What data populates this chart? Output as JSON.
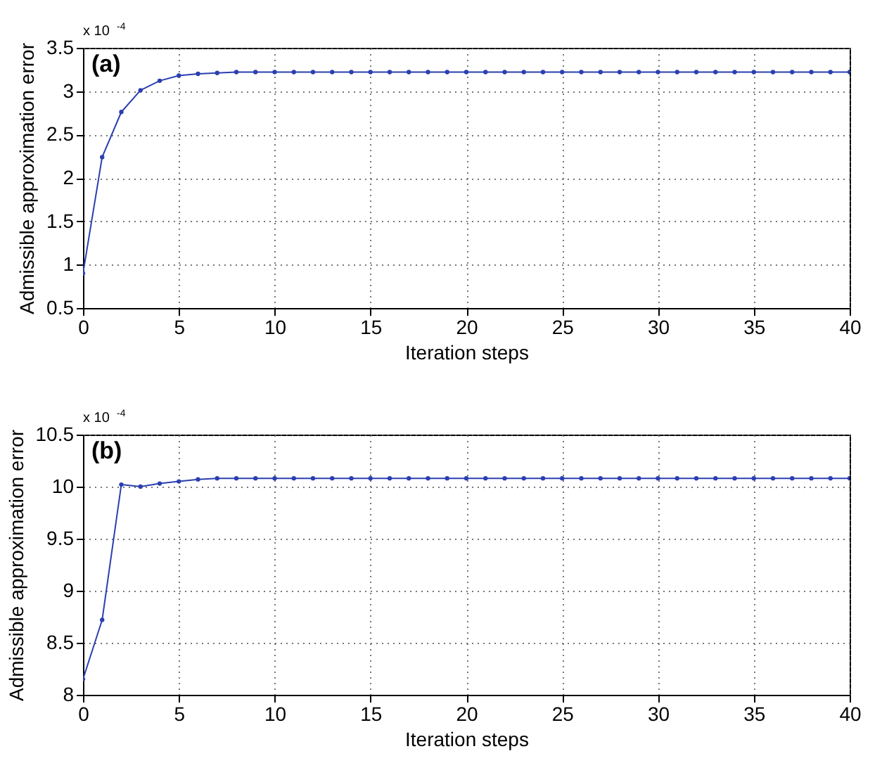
{
  "chart_data": [
    {
      "type": "line",
      "xlabel": "Iteration steps",
      "ylabel": "Admissible approximation error",
      "annotations": [
        "(a)",
        "x 10$^{-4}$"
      ],
      "x": [
        0,
        1,
        2,
        3,
        4,
        5,
        6,
        7,
        8,
        9,
        10,
        11,
        12,
        13,
        14,
        15,
        16,
        17,
        18,
        19,
        20,
        21,
        22,
        23,
        24,
        25,
        26,
        27,
        28,
        29,
        30,
        31,
        32,
        33,
        34,
        35,
        36,
        37,
        38,
        39,
        40
      ],
      "series": [
        {
          "color": "#2b3fb0",
          "values": [
            0.9,
            2.24,
            2.76,
            3.01,
            3.12,
            3.18,
            3.2,
            3.21,
            3.22,
            3.22,
            3.22,
            3.22,
            3.22,
            3.22,
            3.22,
            3.22,
            3.22,
            3.22,
            3.22,
            3.22,
            3.22,
            3.22,
            3.22,
            3.22,
            3.22,
            3.22,
            3.22,
            3.22,
            3.22,
            3.22,
            3.22,
            3.22,
            3.22,
            3.22,
            3.22,
            3.22,
            3.22,
            3.22,
            3.22,
            3.22,
            3.22
          ]
        }
      ],
      "xlim": [
        0,
        40
      ],
      "xticks": [
        0,
        5,
        10,
        15,
        20,
        25,
        30,
        35,
        40
      ],
      "ylim": [
        0.5,
        3.5
      ],
      "yticks": [
        0.5,
        1,
        1.5,
        2,
        2.5,
        3,
        3.5
      ],
      "grid": true,
      "marker": "circle",
      "line_style": "solid"
    },
    {
      "type": "line",
      "xlabel": "Iteration steps",
      "ylabel": "Admissible approximation error",
      "annotations": [
        "(b)",
        "x 10$^{-4}$"
      ],
      "x": [
        0,
        1,
        2,
        3,
        4,
        5,
        6,
        7,
        8,
        9,
        10,
        11,
        12,
        13,
        14,
        15,
        16,
        17,
        18,
        19,
        20,
        21,
        22,
        23,
        24,
        25,
        26,
        27,
        28,
        29,
        30,
        31,
        32,
        33,
        34,
        35,
        36,
        37,
        38,
        39,
        40
      ],
      "series": [
        {
          "color": "#2b3fb0",
          "values": [
            8.15,
            8.72,
            10.02,
            10.0,
            10.03,
            10.05,
            10.07,
            10.08,
            10.08,
            10.08,
            10.08,
            10.08,
            10.08,
            10.08,
            10.08,
            10.08,
            10.08,
            10.08,
            10.08,
            10.08,
            10.08,
            10.08,
            10.08,
            10.08,
            10.08,
            10.08,
            10.08,
            10.08,
            10.08,
            10.08,
            10.08,
            10.08,
            10.08,
            10.08,
            10.08,
            10.08,
            10.08,
            10.08,
            10.08,
            10.08,
            10.08
          ]
        }
      ],
      "xlim": [
        0,
        40
      ],
      "xticks": [
        0,
        5,
        10,
        15,
        20,
        25,
        30,
        35,
        40
      ],
      "ylim": [
        8,
        10.5
      ],
      "yticks": [
        8,
        8.5,
        9,
        9.5,
        10,
        10.5
      ],
      "grid": true,
      "marker": "circle",
      "line_style": "solid"
    }
  ]
}
